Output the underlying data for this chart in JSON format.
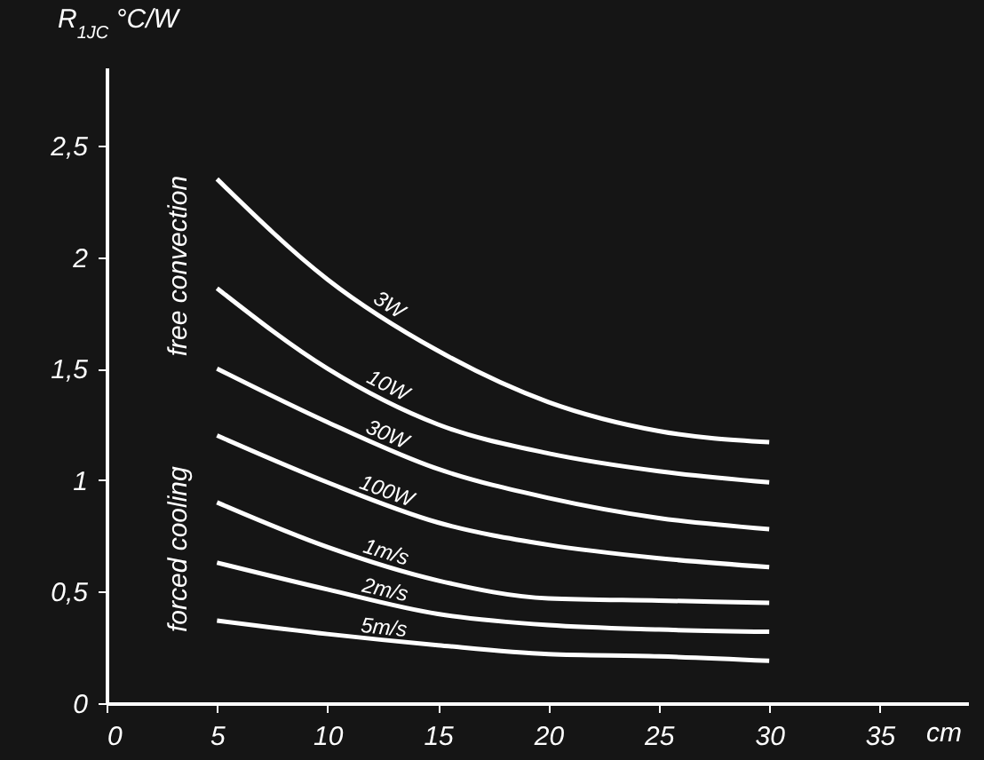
{
  "chart_data": {
    "type": "line",
    "ylabel": "R$_{1JC}$ °C/W",
    "xlabel": "cm",
    "x": [
      5,
      10,
      15,
      20,
      25,
      30
    ],
    "series": [
      {
        "name": "3W",
        "color": "#ffffff",
        "values": [
          2.35,
          1.9,
          1.58,
          1.35,
          1.22,
          1.17
        ]
      },
      {
        "name": "10W",
        "color": "#ffffff",
        "values": [
          1.86,
          1.5,
          1.25,
          1.12,
          1.04,
          0.99
        ]
      },
      {
        "name": "30W",
        "color": "#ffffff",
        "values": [
          1.5,
          1.26,
          1.05,
          0.92,
          0.83,
          0.78
        ]
      },
      {
        "name": "100W",
        "color": "#ffffff",
        "values": [
          1.2,
          0.99,
          0.81,
          0.71,
          0.65,
          0.61
        ]
      },
      {
        "name": "1m/s",
        "color": "#ffffff",
        "values": [
          0.9,
          0.7,
          0.55,
          0.47,
          0.46,
          0.45
        ]
      },
      {
        "name": "2m/s",
        "color": "#ffffff",
        "values": [
          0.63,
          0.51,
          0.4,
          0.35,
          0.33,
          0.32
        ]
      },
      {
        "name": "5m/s",
        "color": "#ffffff",
        "values": [
          0.37,
          0.31,
          0.26,
          0.22,
          0.21,
          0.19
        ]
      }
    ],
    "annotations": [
      "free convection",
      "forced cooling"
    ],
    "xlim": [
      0,
      39
    ],
    "xticks": [
      0,
      5,
      10,
      15,
      20,
      25,
      30,
      35
    ],
    "ylim": [
      0,
      2.85
    ],
    "yticks": [
      0,
      {
        "value": 0.5,
        "label": "0,5"
      },
      1,
      {
        "value": 1.5,
        "label": "1,5"
      },
      2,
      {
        "value": 2.5,
        "label": "2,5"
      }
    ],
    "grid": false,
    "legend": false,
    "marker": "none",
    "line_style": "solid"
  }
}
